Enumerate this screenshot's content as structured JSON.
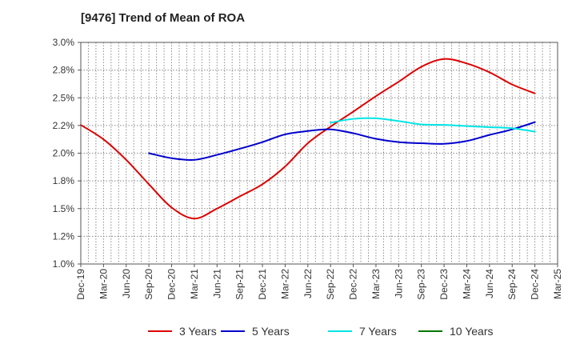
{
  "chart_data": {
    "type": "line",
    "title": "[9476]  Trend of Mean of ROA",
    "xlabel": "",
    "ylabel": "",
    "categories": [
      "Dec-19",
      "Mar-20",
      "Jun-20",
      "Sep-20",
      "Dec-20",
      "Mar-21",
      "Jun-21",
      "Sep-21",
      "Dec-21",
      "Mar-22",
      "Jun-22",
      "Sep-22",
      "Dec-22",
      "Mar-23",
      "Jun-23",
      "Sep-23",
      "Dec-23",
      "Mar-24",
      "Jun-24",
      "Sep-24",
      "Dec-24",
      "Mar-25"
    ],
    "ylim": [
      1.0,
      3.0
    ],
    "yticks": [
      1.0,
      1.25,
      1.5,
      1.75,
      2.0,
      2.25,
      2.5,
      2.75,
      3.0
    ],
    "ytick_labels": [
      "1.0%",
      "1.2%",
      "1.5%",
      "1.8%",
      "2.0%",
      "2.2%",
      "2.5%",
      "2.8%",
      "3.0%"
    ],
    "grid": true,
    "legend_position": "bottom",
    "series": [
      {
        "name": "3 Years",
        "color": "#dd0000",
        "values": [
          2.255,
          2.125,
          1.94,
          1.72,
          1.51,
          1.41,
          1.5,
          1.61,
          1.72,
          1.88,
          2.09,
          2.24,
          2.375,
          2.515,
          2.645,
          2.78,
          2.85,
          2.81,
          2.73,
          2.62,
          2.54,
          null
        ]
      },
      {
        "name": "5 Years",
        "color": "#0000cc",
        "values": [
          null,
          null,
          null,
          2.0,
          1.955,
          1.94,
          1.985,
          2.04,
          2.1,
          2.17,
          2.2,
          2.215,
          2.18,
          2.13,
          2.1,
          2.09,
          2.085,
          2.11,
          2.165,
          2.215,
          2.28,
          null
        ]
      },
      {
        "name": "7 Years",
        "color": "#00e5e5",
        "values": [
          null,
          null,
          null,
          null,
          null,
          null,
          null,
          null,
          null,
          null,
          null,
          2.275,
          2.31,
          2.315,
          2.29,
          2.26,
          2.255,
          2.245,
          2.235,
          2.225,
          2.195,
          null
        ]
      },
      {
        "name": "10 Years",
        "color": "#007700",
        "values": [
          null,
          null,
          null,
          null,
          null,
          null,
          null,
          null,
          null,
          null,
          null,
          null,
          null,
          null,
          null,
          null,
          null,
          null,
          null,
          null,
          null,
          null
        ]
      }
    ]
  }
}
